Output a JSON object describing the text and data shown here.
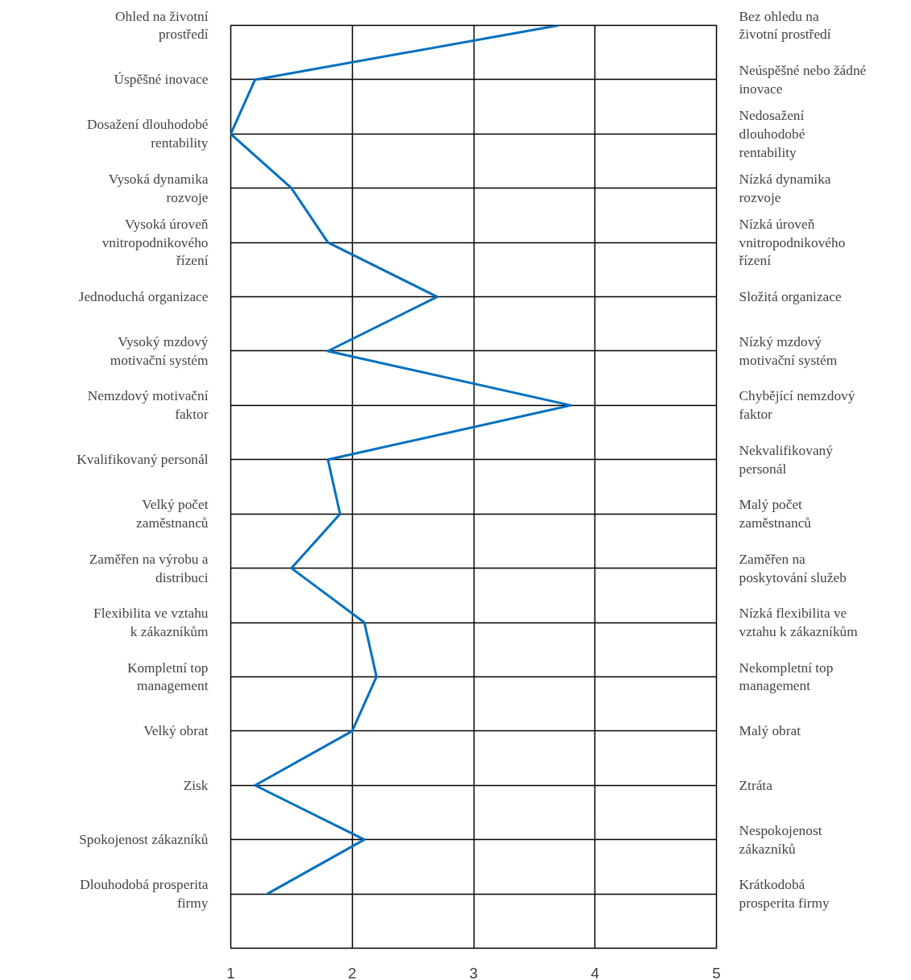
{
  "chart_data": {
    "type": "line",
    "orientation": "horizontal",
    "categories": [
      "Ohled na životní prostředí",
      "Úspěšné inovace",
      "Dosažení dlouhodobé rentability",
      "Vysoká dynamika rozvoje",
      "Vysoká úroveň vnitropodnikového řízení",
      "Jednoduchá organizace",
      "Vysoký mzdový motivační systém",
      "Nemzdový motivační faktor",
      "Kvalifikovaný personál",
      "Velký počet zaměstnanců",
      "Zaměřen na výrobu a distribuci",
      "Flexibilita ve vztahu k zákazníkům",
      "Kompletní top management",
      "Velký obrat",
      "Zisk",
      "Spokojenost zákazníků",
      "Dlouhodobá prosperita firmy"
    ],
    "y2_categories": [
      "Bez ohledu na životní prostředí",
      "Neúspěšné nebo žádné inovace",
      "Nedosažení dlouhodobé rentability",
      "Nízká dynamika rozvoje",
      "Nízká úroveň vnitropodnikového řízení",
      "Složitá organizace",
      "Nízký mzdový motivační systém",
      "Chybějící nemzdový faktor",
      "Nekvalifikovaný personál",
      "Malý počet zaměstnanců",
      "Zaměřen na poskytování služeb",
      "Nízká flexibilita ve vztahu k zákazníkům",
      "Nekompletní top management",
      "Malý obrat",
      "Ztráta",
      "Nespokojenost zákazníků",
      "Krátkodobá prosperita firmy"
    ],
    "series": [
      {
        "color": "#0070c0",
        "values": [
          3.7,
          1.2,
          1.0,
          1.5,
          1.8,
          2.7,
          1.8,
          3.8,
          1.8,
          1.9,
          1.5,
          2.1,
          2.2,
          2.0,
          1.2,
          2.1,
          1.3
        ]
      }
    ],
    "xlim": [
      1,
      5
    ],
    "xticks": [
      1,
      2,
      3,
      4,
      5
    ],
    "grid": true,
    "marker": "none",
    "line_style": "solid"
  }
}
